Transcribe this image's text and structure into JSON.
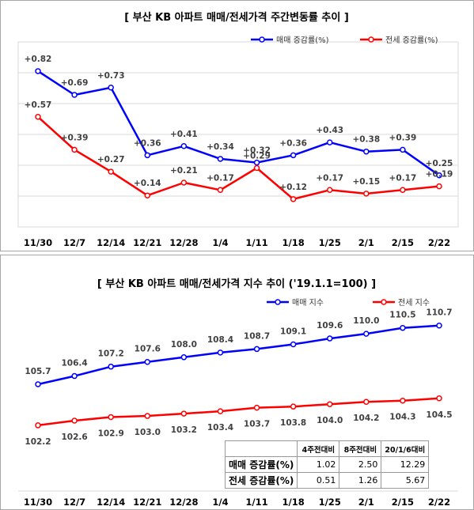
{
  "chart_data": [
    {
      "type": "line",
      "title": "[ 부산  KB 아파트 매매/전세가격 주간변동률 추이 ]",
      "categories": [
        "11/30",
        "12/7",
        "12/14",
        "12/21",
        "12/28",
        "1/4",
        "1/11",
        "1/18",
        "1/25",
        "2/1",
        "2/15",
        "2/22"
      ],
      "series": [
        {
          "name": "매매 증감률(%)",
          "color": "#0000ff",
          "values": [
            0.82,
            0.69,
            0.73,
            0.36,
            0.41,
            0.34,
            0.32,
            0.36,
            0.43,
            0.38,
            0.39,
            0.25
          ],
          "labels": [
            "+0.82",
            "+0.69",
            "+0.73",
            "+0.36",
            "+0.41",
            "+0.34",
            "+0.32",
            "+0.36",
            "+0.43",
            "+0.38",
            "+0.39",
            "+0.25"
          ]
        },
        {
          "name": "전세 증감률(%)",
          "color": "#ff0000",
          "values": [
            0.57,
            0.39,
            0.27,
            0.14,
            0.21,
            0.17,
            0.29,
            0.12,
            0.17,
            0.15,
            0.17,
            0.19
          ],
          "labels": [
            "+0.57",
            "+0.39",
            "+0.27",
            "+0.14",
            "+0.21",
            "+0.17",
            "+0.29",
            "+0.12",
            "+0.17",
            "+0.15",
            "+0.17",
            "+0.19"
          ]
        }
      ],
      "ylim": [
        0.05,
        0.85
      ],
      "grid": true,
      "legend": "top-right"
    },
    {
      "type": "line",
      "title": "[ 부산  KB 아파트 매매/전세가격 지수 추이 ('19.1.1=100) ]",
      "categories": [
        "11/30",
        "12/7",
        "12/14",
        "12/21",
        "12/28",
        "1/4",
        "1/11",
        "1/18",
        "1/25",
        "2/1",
        "2/15",
        "2/22"
      ],
      "series": [
        {
          "name": "매매 지수",
          "color": "#0000ff",
          "values": [
            105.7,
            106.4,
            107.2,
            107.6,
            108.0,
            108.4,
            108.7,
            109.1,
            109.6,
            110.0,
            110.5,
            110.7
          ],
          "labels": [
            "105.7",
            "106.4",
            "107.2",
            "107.6",
            "108.0",
            "108.4",
            "108.7",
            "109.1",
            "109.6",
            "110.0",
            "110.5",
            "110.7"
          ]
        },
        {
          "name": "전세 지수",
          "color": "#ff0000",
          "values": [
            102.2,
            102.6,
            102.9,
            103.0,
            103.2,
            103.4,
            103.7,
            103.8,
            104.0,
            104.2,
            104.3,
            104.5
          ],
          "labels": [
            "102.2",
            "102.6",
            "102.9",
            "103.0",
            "103.2",
            "103.4",
            "103.7",
            "103.8",
            "104.0",
            "104.2",
            "104.3",
            "104.5"
          ]
        }
      ],
      "ylim": [
        99.5,
        112.5
      ],
      "grid": false,
      "legend": "top-right"
    }
  ],
  "summary_table": {
    "headers": [
      "",
      "4주전대비",
      "8주전대비",
      "20/1/6대비"
    ],
    "rows": [
      {
        "label": "매매 증감률(%)",
        "values": [
          "1.02",
          "2.50",
          "12.29"
        ]
      },
      {
        "label": "전세 증감률(%)",
        "values": [
          "0.51",
          "1.26",
          "5.67"
        ]
      }
    ]
  }
}
